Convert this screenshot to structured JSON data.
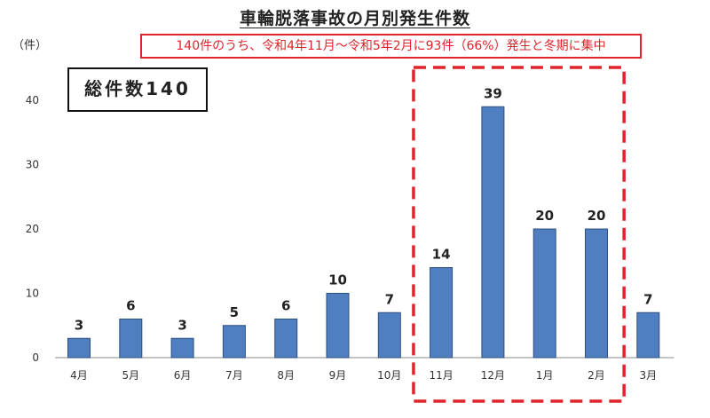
{
  "header": {
    "title": "車輪脱落事故の月別発生件数",
    "unit": "（件）",
    "note": "140件のうち、令和4年11月～令和5年2月に93件（66%）発生と冬期に集中",
    "total": "総件数140"
  },
  "colors": {
    "bar": "#4f7fc0",
    "bar_edge": "#2d4f80",
    "highlight": "#e0242c"
  },
  "chart_data": {
    "type": "bar",
    "title": "車輪脱落事故の月別発生件数",
    "ylabel": "（件）",
    "categories": [
      "4月",
      "5月",
      "6月",
      "7月",
      "8月",
      "9月",
      "10月",
      "11月",
      "12月",
      "1月",
      "2月",
      "3月"
    ],
    "values": [
      3,
      6,
      3,
      5,
      6,
      10,
      7,
      14,
      39,
      20,
      20,
      7
    ],
    "ylim": [
      0,
      40
    ],
    "yticks": [
      0,
      10,
      20,
      30,
      40
    ],
    "grid": false,
    "legend": "none",
    "highlight_categories": [
      "11月",
      "12月",
      "1月",
      "2月"
    ],
    "annotations": [
      "総件数140",
      "140件のうち、令和4年11月～令和5年2月に93件（66%）発生と冬期に集中"
    ]
  }
}
